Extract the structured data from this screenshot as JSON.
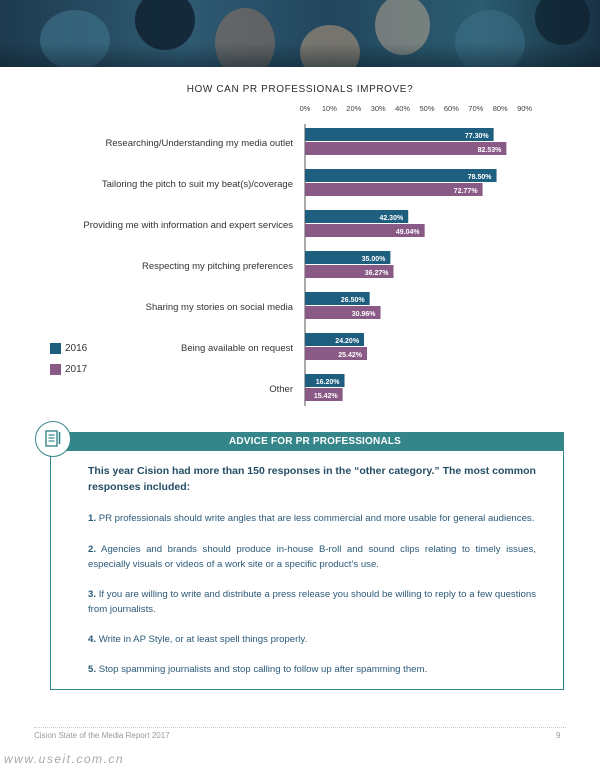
{
  "chart_data": {
    "type": "bar",
    "orientation": "horizontal",
    "title": "HOW CAN PR PROFESSIONALS IMPROVE?",
    "x_ticks": [
      "0%",
      "10%",
      "20%",
      "30%",
      "40%",
      "50%",
      "60%",
      "70%",
      "80%",
      "90%"
    ],
    "xlim": [
      0,
      90
    ],
    "categories": [
      "Researching/Understanding my media outlet",
      "Tailoring the pitch to suit my beat(s)/coverage",
      "Providing me with information and expert services",
      "Respecting my pitching preferences",
      "Sharing my stories on social media",
      "Being available on request",
      "Other"
    ],
    "series": [
      {
        "name": "2016",
        "color": "#1e5f80",
        "values": [
          77.3,
          78.5,
          42.3,
          35.0,
          26.5,
          24.2,
          16.2
        ],
        "labels": [
          "77.30%",
          "78.50%",
          "42.30%",
          "35.00%",
          "26.50%",
          "24.20%",
          "16.20%"
        ]
      },
      {
        "name": "2017",
        "color": "#8a5a86",
        "values": [
          82.53,
          72.77,
          49.04,
          36.27,
          30.96,
          25.42,
          15.42
        ],
        "labels": [
          "82.53%",
          "72.77%",
          "49.04%",
          "36.27%",
          "30.96%",
          "25.42%",
          "15.42%"
        ]
      }
    ],
    "legend_placement": "left",
    "grid": false
  },
  "legend": [
    {
      "label": "2016",
      "color": "#1e5f80"
    },
    {
      "label": "2017",
      "color": "#8a5a86"
    }
  ],
  "advice": {
    "header": "ADVICE FOR PR PROFESSIONALS",
    "icon": "document-list-icon",
    "lead": "This year Cision had more than 150 responses in the “other category.” The most common responses included:",
    "tips": [
      {
        "num": "1.",
        "text": "PR professionals should write angles that are less commercial and more usable for general audiences."
      },
      {
        "num": "2.",
        "text": "Agencies and brands should produce in-house B-roll and sound clips relating to timely issues, especially visuals or videos of a work site or a specific product’s use."
      },
      {
        "num": "3.",
        "text": "If you are willing to write and distribute a press release you should be willing to reply to a few questions from journalists."
      },
      {
        "num": "4.",
        "text": "Write in AP Style, or at least spell things properly."
      },
      {
        "num": "5.",
        "text": "Stop spamming journalists and stop calling to follow up after spamming them."
      }
    ]
  },
  "footer": {
    "left": "Cision State of the Media Report 2017",
    "page": "9"
  },
  "watermark": "www.useit.com.cn",
  "colors": {
    "accent": "#35868a",
    "text_blue": "#2b5a78"
  }
}
